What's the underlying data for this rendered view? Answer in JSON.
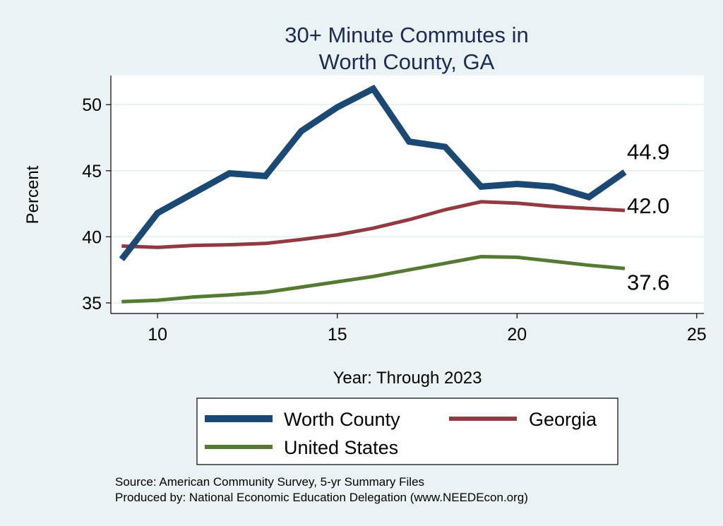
{
  "chart_data": {
    "type": "line",
    "title": [
      "30+ Minute Commutes in",
      "Worth County, GA"
    ],
    "xlabel": "Year: Through 2023",
    "ylabel": "Percent",
    "xlim": [
      8.7,
      25.2
    ],
    "ylim": [
      34.2,
      52.2
    ],
    "xticks": [
      10,
      15,
      20,
      25
    ],
    "yticks": [
      35,
      40,
      45,
      50
    ],
    "grid": true,
    "legend_position": "bottom",
    "series": [
      {
        "name": "Worth County",
        "color": "#1a4a73",
        "width": 9,
        "x": [
          9,
          10,
          11,
          12,
          13,
          14,
          15,
          16,
          17,
          18,
          19,
          20,
          21,
          22,
          23
        ],
        "values": [
          38.3,
          41.8,
          43.3,
          44.8,
          44.6,
          48.0,
          49.8,
          51.2,
          47.2,
          46.8,
          43.8,
          44.0,
          43.8,
          43.0,
          44.9
        ],
        "end_label": "44.9"
      },
      {
        "name": "Georgia",
        "color": "#913b40",
        "width": 5,
        "x": [
          9,
          10,
          11,
          12,
          13,
          14,
          15,
          16,
          17,
          18,
          19,
          20,
          21,
          22,
          23
        ],
        "values": [
          39.3,
          39.2,
          39.35,
          39.4,
          39.5,
          39.8,
          40.15,
          40.65,
          41.3,
          42.05,
          42.65,
          42.55,
          42.3,
          42.15,
          42.0
        ],
        "end_label": "42.0"
      },
      {
        "name": "United States",
        "color": "#557a31",
        "width": 5,
        "x": [
          9,
          10,
          11,
          12,
          13,
          14,
          15,
          16,
          17,
          18,
          19,
          20,
          21,
          22,
          23
        ],
        "values": [
          35.1,
          35.2,
          35.45,
          35.6,
          35.8,
          36.2,
          36.6,
          37.0,
          37.5,
          38.0,
          38.5,
          38.45,
          38.15,
          37.85,
          37.6
        ],
        "end_label": "37.6"
      }
    ],
    "source_lines": [
      "Source: American Community Survey, 5-yr Summary Files",
      "Produced by: National Economic Education Delegation (www.NEEDEcon.org)"
    ]
  }
}
